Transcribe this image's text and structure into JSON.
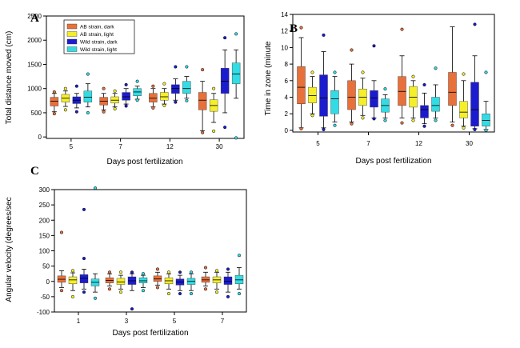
{
  "colors": {
    "ab_dark": "#e8703a",
    "ab_light": "#f4ef2a",
    "wild_dark": "#1c1ccf",
    "wild_light": "#33dce4",
    "frame": "#000000"
  },
  "legend": {
    "placement": "top-left of panel A",
    "entries": [
      "AB strain, dark",
      "AB strain, light",
      "Wild strain, dark",
      "Wild strain, light"
    ]
  },
  "chart_data": [
    {
      "type": "box",
      "letter": "A",
      "title": "",
      "xlabel": "Days post fertilization",
      "ylabel": "Total distance moved (cm)",
      "categories": [
        "5",
        "7",
        "12",
        "30"
      ],
      "ylim": [
        -30,
        2500
      ],
      "yticks": [
        0,
        500,
        1000,
        1500,
        2000,
        2500
      ],
      "grid": false,
      "series": [
        {
          "name": "AB strain, dark",
          "color_key": "ab_dark",
          "boxes": [
            {
              "min": 520,
              "q1": 640,
              "median": 740,
              "q3": 820,
              "max": 900,
              "outliers": [
                480,
                930
              ]
            },
            {
              "min": 560,
              "q1": 660,
              "median": 740,
              "q3": 820,
              "max": 900,
              "outliers": [
                520,
                1000
              ]
            },
            {
              "min": 620,
              "q1": 720,
              "median": 800,
              "q3": 900,
              "max": 1000,
              "outliers": [
                600,
                1050
              ]
            },
            {
              "min": 130,
              "q1": 560,
              "median": 760,
              "q3": 920,
              "max": 1150,
              "outliers": [
                90,
                1390
              ]
            }
          ]
        },
        {
          "name": "AB strain, light",
          "color_key": "ab_light",
          "boxes": [
            {
              "min": 630,
              "q1": 720,
              "median": 800,
              "q3": 880,
              "max": 950,
              "outliers": [
                560,
                1000
              ]
            },
            {
              "min": 620,
              "q1": 700,
              "median": 760,
              "q3": 830,
              "max": 900,
              "outliers": [
                580,
                950
              ]
            },
            {
              "min": 680,
              "q1": 760,
              "median": 830,
              "q3": 920,
              "max": 1000,
              "outliers": [
                650,
                1100
              ]
            },
            {
              "min": 300,
              "q1": 530,
              "median": 650,
              "q3": 770,
              "max": 900,
              "outliers": [
                120,
                1000
              ]
            }
          ]
        },
        {
          "name": "Wild strain, dark",
          "color_key": "wild_dark",
          "boxes": [
            {
              "min": 600,
              "q1": 690,
              "median": 760,
              "q3": 830,
              "max": 900,
              "outliers": [
                520,
                1050
              ]
            },
            {
              "min": 680,
              "q1": 760,
              "median": 830,
              "q3": 920,
              "max": 1000,
              "outliers": [
                640,
                1080
              ]
            },
            {
              "min": 760,
              "q1": 900,
              "median": 1000,
              "q3": 1080,
              "max": 1200,
              "outliers": [
                720,
                1450
              ]
            },
            {
              "min": 500,
              "q1": 900,
              "median": 1150,
              "q3": 1420,
              "max": 1800,
              "outliers": [
                200,
                2050
              ]
            }
          ]
        },
        {
          "name": "Wild strain, light",
          "color_key": "wild_light",
          "boxes": [
            {
              "min": 620,
              "q1": 720,
              "median": 820,
              "q3": 950,
              "max": 1100,
              "outliers": [
                500,
                1300
              ]
            },
            {
              "min": 780,
              "q1": 850,
              "median": 930,
              "q3": 1000,
              "max": 1050,
              "outliers": [
                760,
                1150
              ]
            },
            {
              "min": 800,
              "q1": 900,
              "median": 1000,
              "q3": 1150,
              "max": 1250,
              "outliers": [
                750,
                1450
              ]
            },
            {
              "min": 800,
              "q1": 1100,
              "median": 1300,
              "q3": 1530,
              "max": 1800,
              "outliers": [
                -20,
                2130
              ]
            }
          ]
        }
      ]
    },
    {
      "type": "box",
      "letter": "B",
      "title": "",
      "xlabel": "Days post fertilization",
      "ylabel": "Time in zone (minute",
      "categories": [
        "5",
        "7",
        "12",
        "30"
      ],
      "ylim": [
        -0.2,
        14
      ],
      "yticks": [
        0,
        2,
        4,
        6,
        8,
        10,
        12,
        14
      ],
      "grid": false,
      "series": [
        {
          "name": "AB strain, dark",
          "color_key": "ab_dark",
          "boxes": [
            {
              "min": 0.3,
              "q1": 3.2,
              "median": 5.2,
              "q3": 7.7,
              "max": 11.2,
              "outliers": [
                0.2,
                12.4
              ]
            },
            {
              "min": 1.0,
              "q1": 2.5,
              "median": 4.0,
              "q3": 6.0,
              "max": 8.0,
              "outliers": [
                0.8,
                9.7
              ]
            },
            {
              "min": 1.5,
              "q1": 3.0,
              "median": 4.7,
              "q3": 6.5,
              "max": 9.0,
              "outliers": [
                0.9,
                12.2
              ]
            },
            {
              "min": 1.0,
              "q1": 3.0,
              "median": 4.6,
              "q3": 7.0,
              "max": 12.5,
              "outliers": [
                0.6
              ]
            }
          ]
        },
        {
          "name": "AB strain, light",
          "color_key": "ab_light",
          "boxes": [
            {
              "min": 2.0,
              "q1": 3.3,
              "median": 4.2,
              "q3": 5.2,
              "max": 6.5,
              "outliers": [
                1.8,
                7.0
              ]
            },
            {
              "min": 1.8,
              "q1": 3.0,
              "median": 4.0,
              "q3": 5.0,
              "max": 6.3,
              "outliers": [
                1.5,
                7.0
              ]
            },
            {
              "min": 1.5,
              "q1": 2.8,
              "median": 4.0,
              "q3": 5.3,
              "max": 6.0,
              "outliers": [
                1.2,
                6.5
              ]
            },
            {
              "min": 0.5,
              "q1": 1.5,
              "median": 2.2,
              "q3": 3.5,
              "max": 6.0,
              "outliers": [
                0.3,
                6.8
              ]
            }
          ]
        },
        {
          "name": "Wild strain, dark",
          "color_key": "wild_dark",
          "boxes": [
            {
              "min": 0.3,
              "q1": 1.7,
              "median": 3.9,
              "q3": 6.7,
              "max": 9.5,
              "outliers": [
                0.1,
                11.5
              ]
            },
            {
              "min": 1.5,
              "q1": 2.8,
              "median": 3.9,
              "q3": 4.8,
              "max": 6.0,
              "outliers": [
                1.4,
                10.2
              ]
            },
            {
              "min": 0.8,
              "q1": 1.5,
              "median": 2.5,
              "q3": 3.0,
              "max": 4.5,
              "outliers": [
                0.5,
                5.5
              ]
            },
            {
              "min": 0.2,
              "q1": 0.5,
              "median": 2.5,
              "q3": 5.8,
              "max": 9.0,
              "outliers": [
                0.1,
                12.8
              ]
            }
          ]
        },
        {
          "name": "Wild strain, light",
          "color_key": "wild_light",
          "boxes": [
            {
              "min": 1.0,
              "q1": 2.0,
              "median": 3.8,
              "q3": 4.8,
              "max": 6.5,
              "outliers": [
                0.6,
                7.0
              ]
            },
            {
              "min": 1.5,
              "q1": 2.2,
              "median": 3.0,
              "q3": 3.8,
              "max": 4.3,
              "outliers": [
                1.2,
                5.0
              ]
            },
            {
              "min": 1.5,
              "q1": 2.3,
              "median": 3.0,
              "q3": 4.0,
              "max": 5.5,
              "outliers": [
                1.2,
                7.5
              ]
            },
            {
              "min": 0.1,
              "q1": 0.5,
              "median": 1.2,
              "q3": 2.0,
              "max": 3.5,
              "outliers": [
                0.0,
                7.0
              ]
            }
          ]
        }
      ]
    },
    {
      "type": "box",
      "letter": "C",
      "title": "",
      "xlabel": "Days post fertilization",
      "ylabel": "Angular velocity (degrees/sec",
      "categories": [
        "1",
        "3",
        "5",
        "7"
      ],
      "ylim": [
        -100,
        300
      ],
      "yticks": [
        -100,
        -50,
        0,
        50,
        100,
        150,
        200,
        250,
        300
      ],
      "grid": false,
      "series": [
        {
          "name": "AB strain, dark",
          "color_key": "ab_dark",
          "boxes": [
            {
              "min": -20,
              "q1": -3,
              "median": 7,
              "q3": 18,
              "max": 35,
              "outliers": [
                -30,
                160
              ]
            },
            {
              "min": -15,
              "q1": -5,
              "median": 3,
              "q3": 12,
              "max": 25,
              "outliers": [
                -25,
                30
              ]
            },
            {
              "min": -12,
              "q1": 0,
              "median": 8,
              "q3": 18,
              "max": 30,
              "outliers": [
                -20,
                40
              ]
            },
            {
              "min": -15,
              "q1": -3,
              "median": 5,
              "q3": 15,
              "max": 30,
              "outliers": [
                -25,
                45
              ]
            }
          ]
        },
        {
          "name": "AB strain, light",
          "color_key": "ab_light",
          "boxes": [
            {
              "min": -30,
              "q1": -8,
              "median": 5,
              "q3": 15,
              "max": 28,
              "outliers": [
                -50,
                35
              ]
            },
            {
              "min": -25,
              "q1": -10,
              "median": -2,
              "q3": 10,
              "max": 20,
              "outliers": [
                -35,
                30
              ]
            },
            {
              "min": -25,
              "q1": -8,
              "median": 2,
              "q3": 12,
              "max": 25,
              "outliers": [
                -40,
                30
              ]
            },
            {
              "min": -25,
              "q1": -5,
              "median": 5,
              "q3": 15,
              "max": 30,
              "outliers": [
                -35,
                35
              ]
            }
          ]
        },
        {
          "name": "Wild strain, dark",
          "color_key": "wild_dark",
          "boxes": [
            {
              "min": -25,
              "q1": -5,
              "median": 10,
              "q3": 22,
              "max": 40,
              "outliers": [
                -35,
                75,
                235
              ]
            },
            {
              "min": -30,
              "q1": -10,
              "median": 2,
              "q3": 15,
              "max": 25,
              "outliers": [
                -90,
                30
              ]
            },
            {
              "min": -30,
              "q1": -12,
              "median": -2,
              "q3": 8,
              "max": 20,
              "outliers": [
                -40,
                30
              ]
            },
            {
              "min": -35,
              "q1": -10,
              "median": 0,
              "q3": 15,
              "max": 30,
              "outliers": [
                -50,
                40
              ]
            }
          ]
        },
        {
          "name": "Wild strain, light",
          "color_key": "wild_light",
          "boxes": [
            {
              "min": -35,
              "q1": -15,
              "median": -3,
              "q3": 8,
              "max": 25,
              "outliers": [
                -55,
                305
              ]
            },
            {
              "min": -20,
              "q1": -5,
              "median": 2,
              "q3": 12,
              "max": 20,
              "outliers": [
                -30,
                25
              ]
            },
            {
              "min": -30,
              "q1": -10,
              "median": 0,
              "q3": 10,
              "max": 25,
              "outliers": [
                -40,
                30
              ]
            },
            {
              "min": -25,
              "q1": -8,
              "median": 5,
              "q3": 20,
              "max": 45,
              "outliers": [
                -40,
                85
              ]
            }
          ]
        }
      ]
    }
  ]
}
